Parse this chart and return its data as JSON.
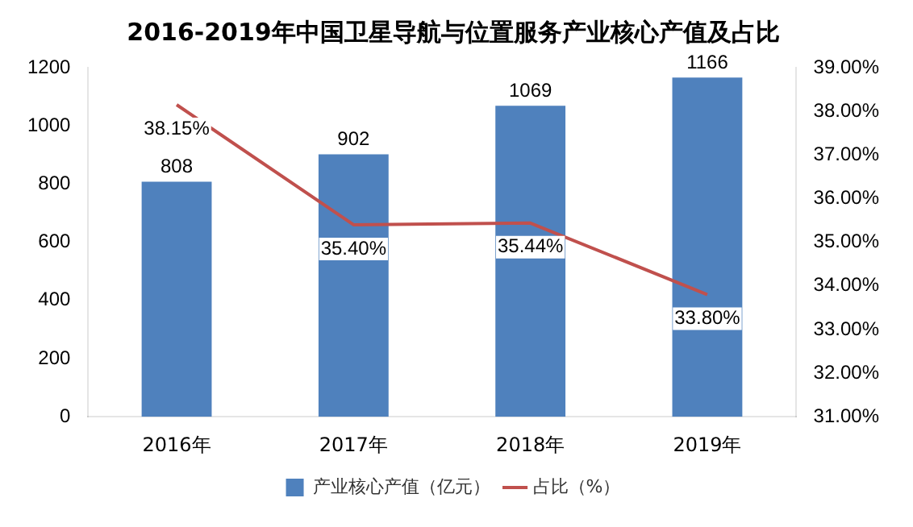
{
  "chart_data": {
    "type": "bar",
    "title": "2016-2019年中国卫星导航与位置服务产业核心产值及占比",
    "categories": [
      "2016年",
      "2017年",
      "2018年",
      "2019年"
    ],
    "series": [
      {
        "name": "产业核心产值（亿元）",
        "color": "#4f81bd",
        "values": [
          808,
          902,
          1069,
          1166
        ],
        "value_labels": [
          "808",
          "902",
          "1069",
          "1166"
        ]
      },
      {
        "name": "占比（%）",
        "type": "line",
        "axis": "y2",
        "color": "#c0504d",
        "values": [
          38.15,
          35.4,
          35.44,
          33.8
        ],
        "value_labels": [
          "38.15%",
          "35.40%",
          "35.44%",
          "33.80%"
        ]
      }
    ],
    "ylim": [
      0,
      1200
    ],
    "yticks": [
      0,
      200,
      400,
      600,
      800,
      1000,
      1200
    ],
    "y2lim": [
      31,
      39
    ],
    "y2ticks": [
      {
        "value": 31,
        "label": "31.00%"
      },
      {
        "value": 32,
        "label": "32.00%"
      },
      {
        "value": 33,
        "label": "33.00%"
      },
      {
        "value": 34,
        "label": "34.00%"
      },
      {
        "value": 35,
        "label": "35.00%"
      },
      {
        "value": 36,
        "label": "36.00%"
      },
      {
        "value": 37,
        "label": "37.00%"
      },
      {
        "value": 38,
        "label": "38.00%"
      },
      {
        "value": 39,
        "label": "39.00%"
      }
    ],
    "grid": false,
    "legend": "bottom",
    "marker": "none"
  }
}
